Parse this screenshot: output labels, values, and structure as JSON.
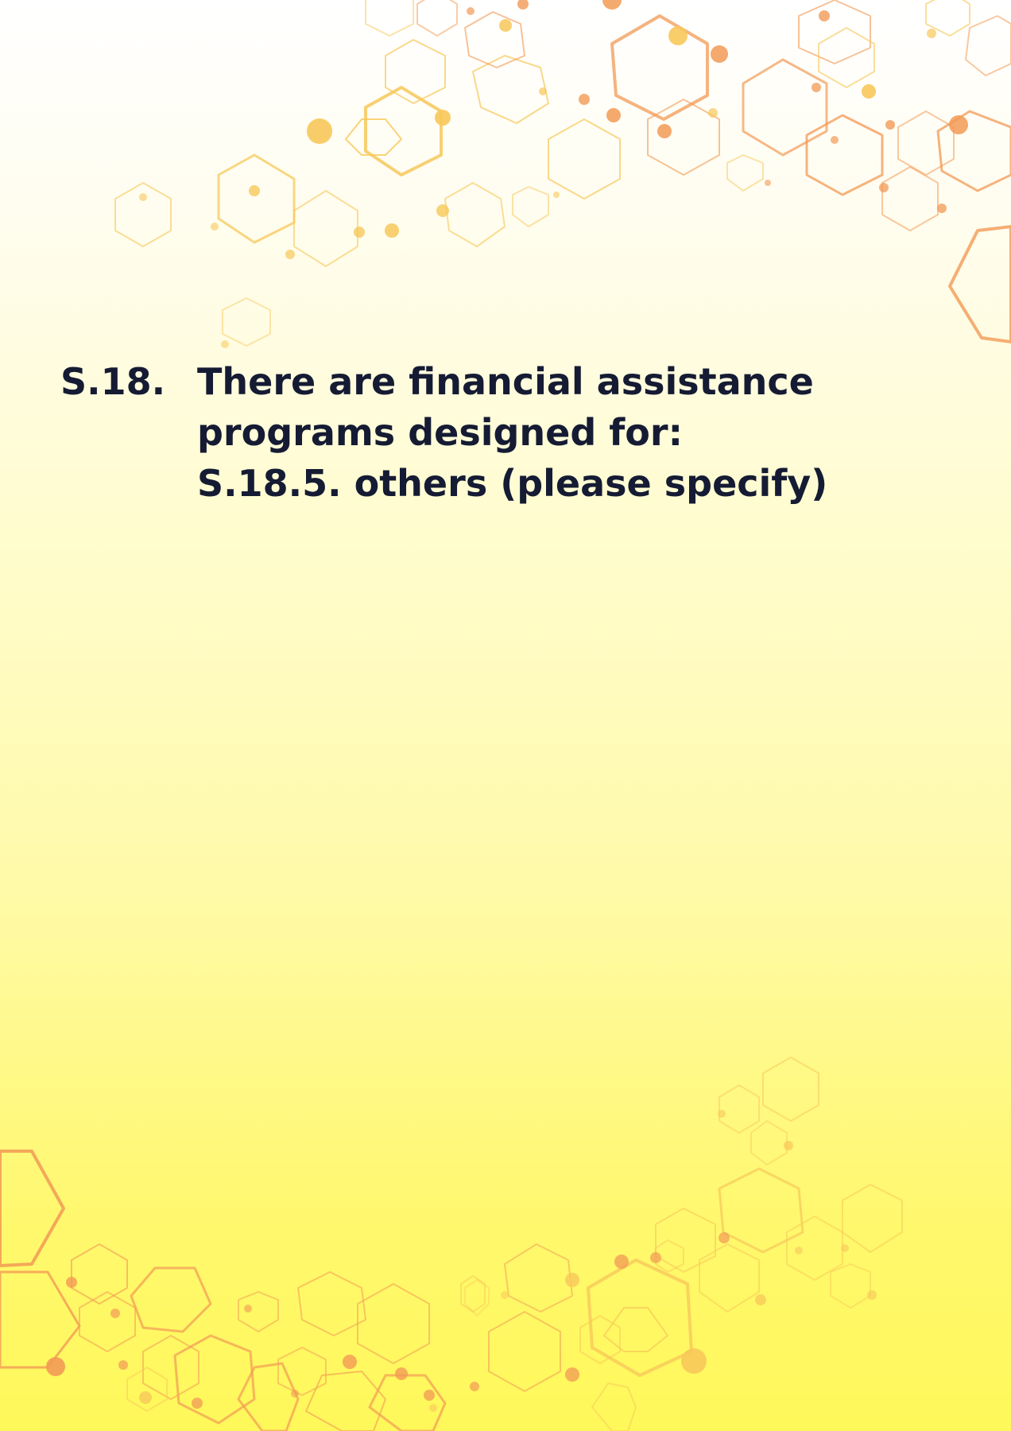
{
  "question": {
    "number": "S.18.",
    "lines": [
      "There are financial assistance",
      "programs designed for:",
      "S.18.5. others (please specify)"
    ]
  },
  "colors": {
    "text": "#151b33",
    "hex_yellow": "#f7c85a",
    "hex_orange": "#f29a55",
    "background_top": "#ffffff",
    "background_bottom": "#fff85a"
  },
  "decorations": {
    "top_pattern": "hexagon-network-pattern",
    "bottom_pattern": "hexagon-network-pattern"
  }
}
